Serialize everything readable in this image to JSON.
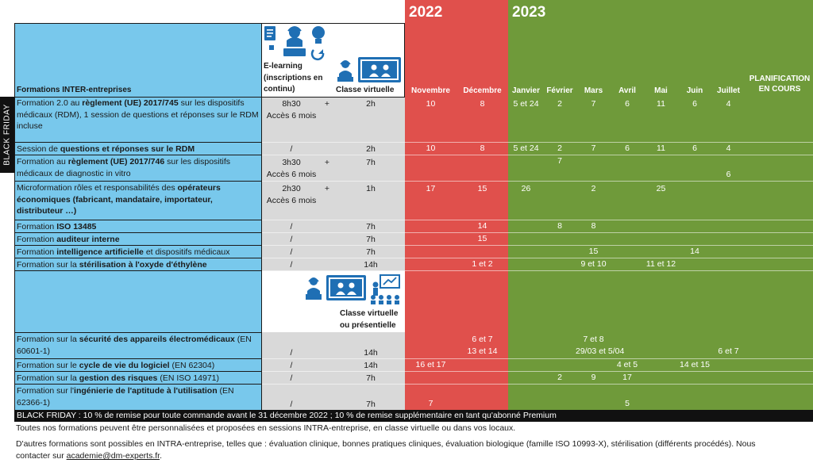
{
  "years": [
    "2022",
    "2023"
  ],
  "header": {
    "col_formations": "Formations INTER-entreprises",
    "elearning": "E-learning (inscriptions en continu)",
    "classe_virtuelle": "Classe virtuelle",
    "classe_virtuelle_presentielle": "Classe virtuelle ou présentielle",
    "months": [
      "Novembre",
      "Décembre",
      "Janvier",
      "Février",
      "Mars",
      "Avril",
      "Mai",
      "Juin",
      "Juillet"
    ],
    "planification": "PLANIFICATION EN COURS"
  },
  "black_friday_side": "BLACK FRIDAY",
  "rows": [
    {
      "pre": "Formation 2.0 au ",
      "bold": "règlement (UE) 2017/745",
      "post": " sur les dispositifs médicaux (RDM), 1 session de questions et réponses sur le RDM incluse",
      "elearning": "8h30",
      "elearning2": "Accès 6 mois",
      "plus": "+",
      "classe": "2h",
      "dates": [
        "10",
        "8",
        "5 et 24",
        "2",
        "7",
        "6",
        "11",
        "6",
        "4"
      ]
    },
    {
      "pre": "Session de ",
      "bold": "questions et réponses sur le RDM",
      "post": "",
      "elearning": "/",
      "classe": "2h",
      "dates": [
        "10",
        "8",
        "5 et 24",
        "2",
        "7",
        "6",
        "11",
        "6",
        "4"
      ]
    },
    {
      "pre": "Formation au ",
      "bold": "règlement (UE) 2017/746",
      "post": " sur les dispositifs médicaux de diagnostic in vitro",
      "elearning": "3h30",
      "elearning2": "Accès 6 mois",
      "plus": "+",
      "classe": "7h",
      "dates": [
        "",
        "",
        "",
        "7",
        "",
        "",
        "",
        "",
        "6"
      ]
    },
    {
      "pre": "Microformation rôles et responsabilités des ",
      "bold": "opérateurs économiques (fabricant, mandataire, importateur, distributeur …)",
      "post": "",
      "elearning": "2h30",
      "elearning2": "Accès 6 mois",
      "plus": "+",
      "classe": "1h",
      "dates": [
        "17",
        "15",
        "26",
        "",
        "2",
        "",
        "25",
        "",
        ""
      ]
    },
    {
      "pre": "Formation ",
      "bold": "ISO 13485",
      "post": "",
      "elearning": "/",
      "classe": "7h",
      "dates": [
        "",
        "14",
        "",
        "8",
        "8",
        "",
        "",
        "",
        ""
      ]
    },
    {
      "pre": "Formation ",
      "bold": "auditeur interne",
      "post": "",
      "elearning": "/",
      "classe": "7h",
      "dates": [
        "",
        "15",
        "",
        "",
        "",
        "",
        "",
        "",
        ""
      ]
    },
    {
      "pre": "Formation ",
      "bold": "intelligence artificielle",
      "post": " et dispositifs médicaux",
      "elearning": "/",
      "classe": "7h",
      "dates": [
        "",
        "",
        "",
        "",
        "15",
        "",
        "",
        "14",
        ""
      ]
    },
    {
      "pre": "Formation sur la ",
      "bold": "stérilisation à l'oxyde d'éthylène",
      "post": "",
      "elearning": "/",
      "classe": "14h",
      "dates": [
        "",
        "1 et 2",
        "",
        "",
        "9 et 10",
        "",
        "11 et 12",
        "",
        ""
      ]
    },
    {
      "pre": "Formation sur la ",
      "bold": "sécurité des appareils électromédicaux",
      "post": " (EN 60601-1)",
      "elearning": "/",
      "classe": "14h",
      "dates": [
        "",
        "6 et 7",
        "",
        "",
        "7 et 8",
        "",
        "",
        "",
        ""
      ],
      "dates2": [
        "",
        "13 et 14",
        "",
        "",
        "29/03 et 5/04",
        "",
        "",
        "",
        "6 et 7"
      ]
    },
    {
      "pre": "Formation sur le ",
      "bold": "cycle de vie du logiciel",
      "post": " (EN 62304)",
      "elearning": "/",
      "classe": "14h",
      "dates": [
        "16 et 17",
        "",
        "",
        "",
        "",
        "4 et 5",
        "",
        "14 et 15",
        ""
      ]
    },
    {
      "pre": "Formation sur la ",
      "bold": "gestion des risques",
      "post": " (EN ISO 14971)",
      "elearning": "/",
      "classe": "7h",
      "dates": [
        "",
        "",
        "",
        "2",
        "9",
        "17",
        "",
        "",
        ""
      ]
    },
    {
      "pre": "Formation sur l'",
      "bold": "ingénierie de l'aptitude à l'utilisation",
      "post": " (EN 62366-1)",
      "elearning": "/",
      "classe": "7h",
      "dates": [
        "7",
        "",
        "",
        "",
        "",
        "5",
        "",
        "",
        ""
      ]
    }
  ],
  "footer": {
    "black_friday": "BLACK FRIDAY : 10 % de remise pour toute commande avant le 31 décembre 2022 ; 10 % de remise supplémentaire en tant qu'abonné Premium",
    "note1": "Toutes nos formations peuvent être personnalisées et proposées en sessions INTRA-entreprise, en classe virtuelle ou dans vos locaux.",
    "note2": "D'autres formations sont possibles en INTRA-entreprise, telles que : évaluation clinique, bonnes pratiques cliniques, évaluation biologique (famille ISO 10993-X), stérilisation (différents procédés). Nous",
    "note3_pre": "contacter sur ",
    "email": "academie@dm-experts.fr",
    "note3_post": "."
  },
  "colors": {
    "blue": "#78c8ec",
    "gray": "#d9d9d9",
    "red": "#e0504c",
    "green": "#6f9a3a",
    "black": "#111111",
    "icon_blue": "#1f6fb4"
  }
}
